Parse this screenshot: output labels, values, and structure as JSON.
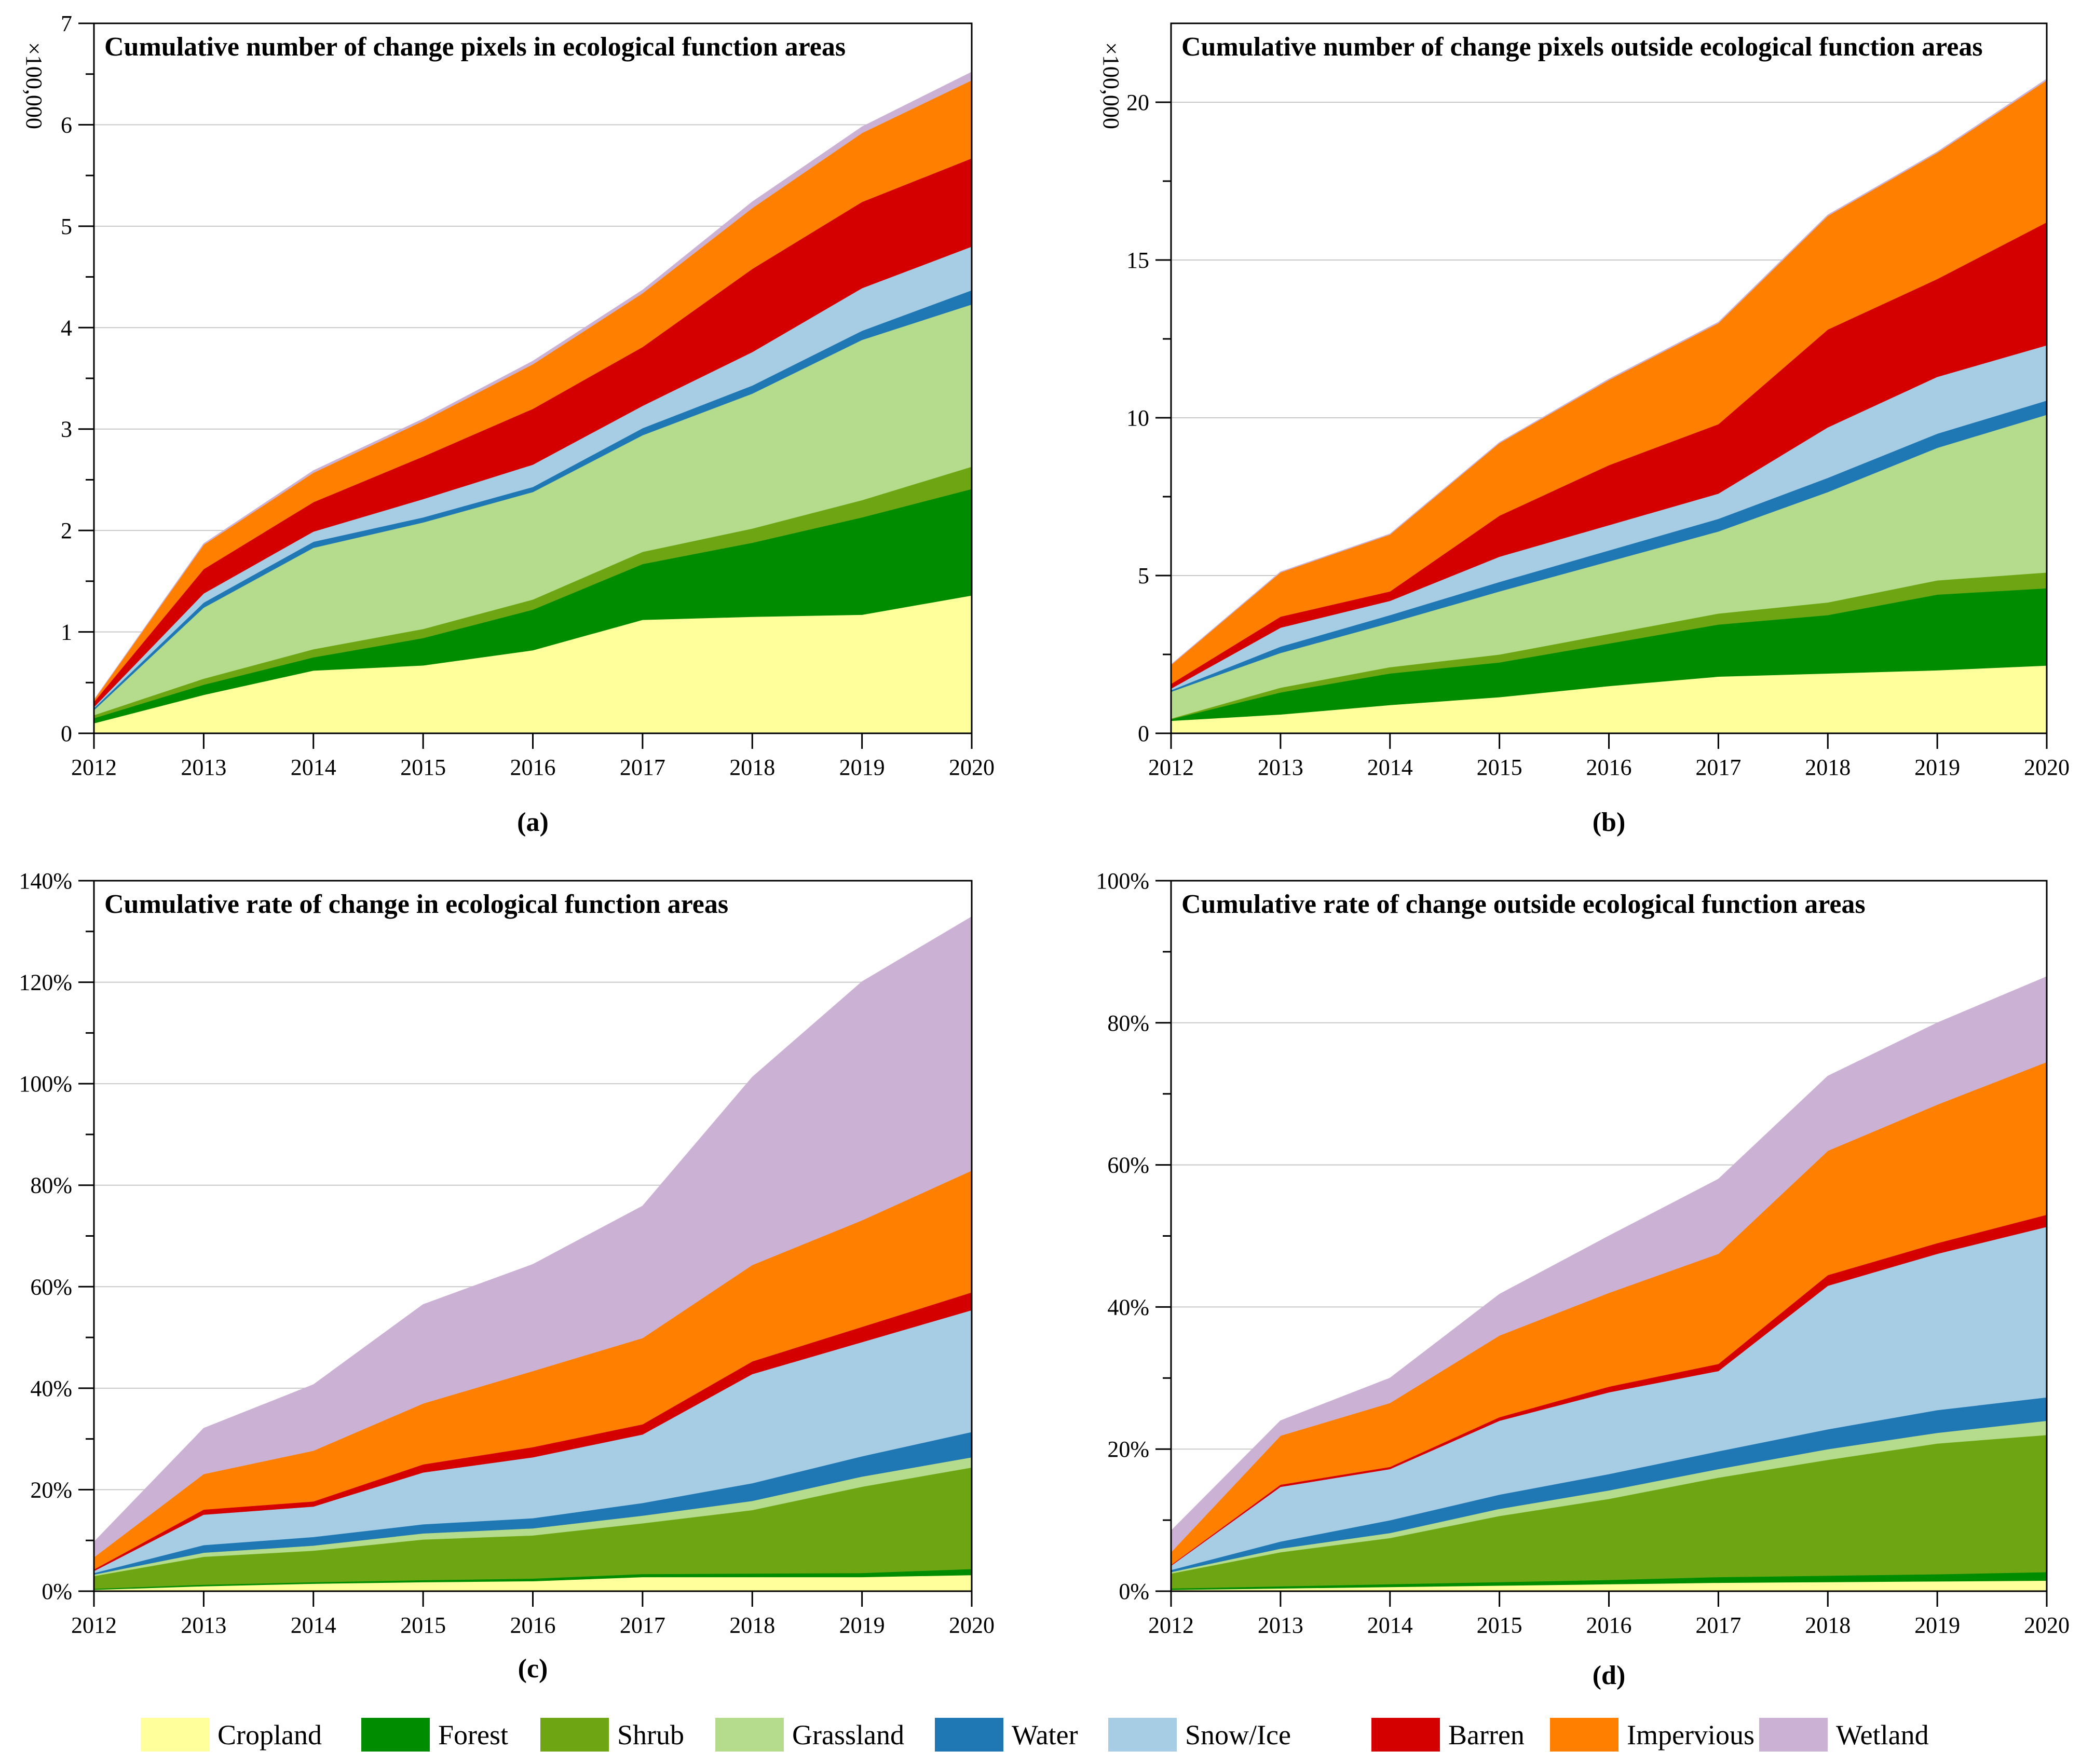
{
  "years": [
    "2012",
    "2013",
    "2014",
    "2015",
    "2016",
    "2017",
    "2018",
    "2019",
    "2020"
  ],
  "categories": [
    "Cropland",
    "Forest",
    "Shrub",
    "Grassland",
    "Water",
    "Snow/Ice",
    "Barren",
    "Impervious",
    "Wetland"
  ],
  "colors": {
    "Cropland": "#ffff9c",
    "Forest": "#008c00",
    "Shrub": "#6ea613",
    "Grassland": "#b4dc8c",
    "Water": "#1f78b4",
    "Snow/Ice": "#a6cde3",
    "Barren": "#d40000",
    "Impervious": "#ff7f00",
    "Wetland": "#cbb2d4"
  },
  "chart_data": [
    {
      "panel": "(a)",
      "type": "area",
      "stacked": true,
      "title": "Cumulative number of change pixels in ecological function areas",
      "ylabel": "×100,000",
      "ylim": [
        0,
        7
      ],
      "yticks": [
        0,
        1,
        2,
        3,
        4,
        5,
        6,
        7
      ],
      "ytick_labels": [
        "0",
        "1",
        "2",
        "3",
        "4",
        "5",
        "6",
        "7"
      ],
      "x": [
        "2012",
        "2013",
        "2014",
        "2015",
        "2016",
        "2017",
        "2018",
        "2019",
        "2020"
      ],
      "series": [
        {
          "name": "Cropland",
          "values": [
            0.1,
            0.38,
            0.62,
            0.67,
            0.82,
            1.12,
            1.15,
            1.17,
            1.36
          ]
        },
        {
          "name": "Forest",
          "values": [
            0.05,
            0.1,
            0.13,
            0.27,
            0.4,
            0.55,
            0.73,
            0.96,
            1.05
          ]
        },
        {
          "name": "Shrub",
          "values": [
            0.03,
            0.06,
            0.08,
            0.09,
            0.1,
            0.12,
            0.14,
            0.17,
            0.22
          ]
        },
        {
          "name": "Grassland",
          "values": [
            0.05,
            0.7,
            1.0,
            1.05,
            1.06,
            1.15,
            1.33,
            1.58,
            1.6
          ]
        },
        {
          "name": "Water",
          "values": [
            0.02,
            0.05,
            0.06,
            0.05,
            0.05,
            0.07,
            0.08,
            0.09,
            0.14
          ]
        },
        {
          "name": "Snow/Ice",
          "values": [
            0.01,
            0.09,
            0.1,
            0.18,
            0.22,
            0.22,
            0.33,
            0.42,
            0.43
          ]
        },
        {
          "name": "Barren",
          "values": [
            0.05,
            0.24,
            0.29,
            0.42,
            0.55,
            0.58,
            0.82,
            0.85,
            0.87
          ]
        },
        {
          "name": "Impervious",
          "values": [
            0.02,
            0.24,
            0.29,
            0.35,
            0.44,
            0.53,
            0.6,
            0.68,
            0.77
          ]
        },
        {
          "name": "Wetland",
          "values": [
            0.0,
            0.01,
            0.02,
            0.02,
            0.03,
            0.03,
            0.06,
            0.06,
            0.08
          ]
        }
      ]
    },
    {
      "panel": "(b)",
      "type": "area",
      "stacked": true,
      "title": "Cumulative number of change pixels  outside ecological function areas",
      "ylabel": "×100,000",
      "ylim": [
        0,
        22.5
      ],
      "yticks": [
        0,
        5,
        10,
        15,
        20
      ],
      "ytick_labels": [
        "0",
        "5",
        "10",
        "15",
        "20"
      ],
      "x": [
        "2012",
        "2013",
        "2014",
        "2015",
        "2016",
        "2017",
        "2018",
        "2019",
        "2020"
      ],
      "series": [
        {
          "name": "Cropland",
          "values": [
            0.4,
            0.6,
            0.9,
            1.15,
            1.5,
            1.8,
            1.9,
            2.0,
            2.15
          ]
        },
        {
          "name": "Forest",
          "values": [
            0.05,
            0.7,
            1.0,
            1.1,
            1.35,
            1.65,
            1.85,
            2.4,
            2.45
          ]
        },
        {
          "name": "Shrub",
          "values": [
            0.02,
            0.15,
            0.2,
            0.25,
            0.3,
            0.35,
            0.4,
            0.45,
            0.5
          ]
        },
        {
          "name": "Grassland",
          "values": [
            0.85,
            1.1,
            1.4,
            2.0,
            2.3,
            2.6,
            3.5,
            4.2,
            5.0
          ]
        },
        {
          "name": "Water",
          "values": [
            0.05,
            0.2,
            0.25,
            0.3,
            0.35,
            0.4,
            0.45,
            0.45,
            0.45
          ]
        },
        {
          "name": "Snow/Ice",
          "values": [
            0.05,
            0.6,
            0.45,
            0.8,
            0.8,
            0.8,
            1.6,
            1.8,
            1.75
          ]
        },
        {
          "name": "Barren",
          "values": [
            0.15,
            0.35,
            0.3,
            1.3,
            1.9,
            2.2,
            3.1,
            3.1,
            3.9
          ]
        },
        {
          "name": "Impervious",
          "values": [
            0.6,
            1.4,
            1.8,
            2.3,
            2.7,
            3.2,
            3.6,
            4.0,
            4.5
          ]
        },
        {
          "name": "Wetland",
          "values": [
            0.01,
            0.02,
            0.02,
            0.02,
            0.03,
            0.03,
            0.03,
            0.03,
            0.04
          ]
        }
      ]
    },
    {
      "panel": "(c)",
      "type": "area",
      "stacked": true,
      "title": "Cumulative rate of change in ecological function areas",
      "ylabel": "",
      "ylim": [
        0,
        140
      ],
      "yticks": [
        0,
        20,
        40,
        60,
        80,
        100,
        120,
        140
      ],
      "ytick_labels": [
        "0%",
        "20%",
        "40%",
        "60%",
        "80%",
        "100%",
        "120%",
        "140%"
      ],
      "x": [
        "2012",
        "2013",
        "2014",
        "2015",
        "2016",
        "2017",
        "2018",
        "2019",
        "2020"
      ],
      "series": [
        {
          "name": "Cropland",
          "values": [
            0.3,
            1.0,
            1.5,
            1.8,
            2.0,
            2.8,
            2.8,
            2.8,
            3.2
          ]
        },
        {
          "name": "Forest",
          "values": [
            0.2,
            0.3,
            0.3,
            0.4,
            0.5,
            0.6,
            0.7,
            0.8,
            1.2
          ]
        },
        {
          "name": "Shrub",
          "values": [
            2.5,
            5.5,
            6.2,
            8.0,
            8.5,
            10.0,
            12.5,
            17.0,
            20.0
          ]
        },
        {
          "name": "Grassland",
          "values": [
            0.3,
            0.8,
            1.0,
            1.2,
            1.4,
            1.5,
            1.8,
            2.0,
            2.0
          ]
        },
        {
          "name": "Water",
          "values": [
            0.3,
            1.5,
            1.7,
            1.8,
            2.0,
            2.5,
            3.5,
            4.0,
            5.0
          ]
        },
        {
          "name": "Snow/Ice",
          "values": [
            0.4,
            6.0,
            6.0,
            10.2,
            12.0,
            13.5,
            21.5,
            22.5,
            24.0
          ]
        },
        {
          "name": "Barren",
          "values": [
            0.3,
            1.0,
            1.0,
            1.6,
            2.0,
            2.0,
            2.5,
            3.0,
            3.5
          ]
        },
        {
          "name": "Impervious",
          "values": [
            2.4,
            7.0,
            10.0,
            12.0,
            15.0,
            17.0,
            19.0,
            21.0,
            24.0
          ]
        },
        {
          "name": "Wetland",
          "values": [
            3.0,
            9.0,
            13.0,
            19.5,
            21.0,
            26.0,
            37.0,
            47.0,
            50.0
          ]
        }
      ]
    },
    {
      "panel": "(d)",
      "type": "area",
      "stacked": true,
      "title": "Cumulative rate of change outside ecological function areas",
      "ylabel": "",
      "ylim": [
        0,
        100
      ],
      "yticks": [
        0,
        20,
        40,
        60,
        80,
        100
      ],
      "ytick_labels": [
        "0%",
        "20%",
        "40%",
        "60%",
        "80%",
        "100%"
      ],
      "x": [
        "2012",
        "2013",
        "2014",
        "2015",
        "2016",
        "2017",
        "2018",
        "2019",
        "2020"
      ],
      "series": [
        {
          "name": "Cropland",
          "values": [
            0.2,
            0.4,
            0.6,
            0.8,
            1.0,
            1.2,
            1.3,
            1.4,
            1.5
          ]
        },
        {
          "name": "Forest",
          "values": [
            0.2,
            0.3,
            0.4,
            0.5,
            0.6,
            0.8,
            0.9,
            1.0,
            1.2
          ]
        },
        {
          "name": "Shrub",
          "values": [
            2.1,
            4.8,
            6.5,
            9.3,
            11.4,
            14.0,
            16.3,
            18.4,
            19.3
          ]
        },
        {
          "name": "Grassland",
          "values": [
            0.2,
            0.5,
            0.7,
            1.0,
            1.2,
            1.2,
            1.5,
            1.5,
            2.0
          ]
        },
        {
          "name": "Water",
          "values": [
            0.3,
            1.0,
            1.8,
            2.0,
            2.3,
            2.5,
            2.8,
            3.2,
            3.3
          ]
        },
        {
          "name": "Snow/Ice",
          "values": [
            0.6,
            7.7,
            7.2,
            10.4,
            11.5,
            11.3,
            20.2,
            22.0,
            24.0
          ]
        },
        {
          "name": "Barren",
          "values": [
            0.1,
            0.3,
            0.3,
            0.5,
            0.8,
            1.0,
            1.5,
            1.5,
            1.7
          ]
        },
        {
          "name": "Impervious",
          "values": [
            1.8,
            6.9,
            9.0,
            11.5,
            13.2,
            15.5,
            17.5,
            19.5,
            21.5
          ]
        },
        {
          "name": "Wetland",
          "values": [
            3.0,
            2.1,
            3.5,
            5.8,
            8.0,
            10.5,
            10.5,
            11.5,
            12.0
          ]
        }
      ]
    }
  ]
}
